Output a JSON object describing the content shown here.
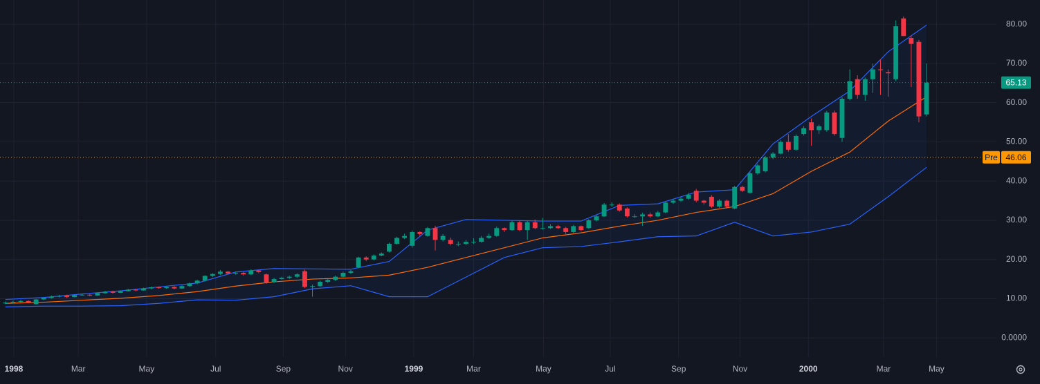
{
  "chart_data": {
    "type": "candlestick",
    "up_color": "#089981",
    "down_color": "#f23645",
    "open": [
      8.8,
      9.0,
      9.2,
      9.4,
      8.6,
      9.8,
      10.2,
      10.5,
      10.8,
      10.4,
      10.9,
      11.0,
      10.8,
      11.4,
      11.8,
      11.5,
      11.9,
      12.3,
      12.1,
      12.6,
      12.9,
      12.7,
      13.0,
      12.6,
      13.2,
      13.9,
      14.6,
      15.8,
      16.3,
      16.9,
      16.4,
      16.6,
      16.2,
      17.2,
      16.2,
      14.2,
      15.0,
      15.3,
      15.6,
      17.0,
      13.0,
      13.2,
      14.3,
      14.8,
      15.6,
      16.6,
      18.0,
      20.5,
      20.0,
      21.0,
      22.0,
      24.0,
      25.5,
      23.5,
      27.0,
      26.0,
      28.0,
      25.0,
      25.0,
      24.0,
      24.0,
      24.5,
      24.5,
      25.5,
      26.0,
      28.0,
      27.5,
      29.5,
      27.5,
      29.5,
      28.0,
      28.0,
      28.5,
      28.0,
      27.0,
      28.5,
      28.0,
      30.0,
      31.0,
      34.0,
      34.0,
      33.0,
      31.0,
      31.0,
      31.5,
      31.0,
      32.0,
      34.5,
      35.0,
      35.5,
      37.5,
      35.0,
      36.0,
      33.5,
      35.0,
      33.0,
      38.5,
      37.0,
      42.0,
      42.5,
      46.0,
      47.0,
      50.0,
      48.0,
      52.0,
      55.0,
      53.0,
      53.0,
      57.5,
      51.0,
      61.0,
      66.0,
      62.0,
      66.0,
      68.5,
      67.8,
      66.0,
      81.5,
      76.5,
      75.5,
      57.0
    ],
    "high": [
      9.3,
      9.5,
      9.7,
      9.6,
      9.9,
      10.4,
      10.8,
      11.0,
      11.0,
      11.1,
      11.3,
      11.2,
      11.6,
      12.0,
      12.0,
      12.1,
      12.5,
      12.5,
      12.8,
      13.1,
      13.1,
      13.2,
      13.2,
      13.4,
      14.1,
      14.8,
      16.0,
      16.5,
      17.3,
      17.1,
      16.9,
      16.8,
      17.5,
      17.4,
      16.4,
      15.3,
      15.6,
      15.9,
      16.5,
      17.4,
      13.6,
      14.6,
      15.1,
      15.9,
      16.9,
      17.3,
      20.7,
      20.8,
      21.3,
      21.8,
      24.3,
      25.8,
      26.6,
      27.4,
      27.2,
      28.3,
      28.6,
      26.5,
      25.6,
      24.6,
      25.0,
      25.4,
      26.0,
      26.6,
      28.4,
      28.2,
      29.9,
      29.8,
      29.8,
      30.2,
      30.6,
      29.0,
      28.8,
      28.3,
      28.8,
      28.7,
      30.3,
      31.4,
      34.4,
      34.6,
      34.3,
      33.3,
      31.6,
      31.9,
      32.0,
      32.4,
      34.8,
      35.4,
      35.9,
      37.0,
      38.0,
      35.2,
      36.4,
      35.4,
      35.3,
      38.8,
      38.8,
      42.4,
      44.4,
      46.4,
      47.4,
      50.4,
      52.0,
      51.9,
      54.0,
      56.0,
      54.4,
      57.9,
      58.0,
      61.4,
      68.5,
      67.0,
      66.4,
      70.0,
      71.0,
      68.5,
      81.0,
      82.0,
      77.0,
      76.0,
      70.0
    ],
    "low": [
      8.6,
      8.8,
      9.0,
      8.8,
      8.5,
      9.6,
      10.0,
      10.3,
      10.2,
      10.3,
      10.7,
      10.6,
      10.7,
      11.2,
      11.3,
      11.4,
      11.8,
      11.9,
      12.0,
      12.4,
      12.5,
      12.5,
      12.4,
      12.5,
      13.0,
      13.7,
      14.4,
      15.5,
      16.0,
      16.2,
      16.1,
      15.9,
      16.0,
      16.5,
      13.8,
      14.0,
      14.8,
      15.0,
      15.3,
      12.7,
      10.5,
      13.0,
      14.0,
      14.5,
      15.4,
      16.3,
      17.8,
      19.6,
      19.8,
      20.8,
      21.8,
      23.8,
      25.2,
      23.0,
      26.0,
      25.8,
      22.3,
      24.6,
      23.6,
      23.4,
      23.7,
      24.0,
      24.3,
      25.3,
      25.8,
      27.0,
      27.3,
      27.2,
      25.0,
      27.7,
      27.6,
      27.8,
      27.7,
      26.5,
      26.8,
      27.2,
      27.8,
      29.7,
      30.8,
      33.5,
      32.2,
      30.7,
      30.6,
      28.6,
      30.6,
      30.8,
      31.8,
      34.2,
      34.7,
      35.2,
      34.6,
      34.0,
      33.2,
      33.2,
      33.0,
      32.8,
      37.2,
      36.8,
      41.6,
      42.2,
      45.6,
      46.8,
      47.5,
      47.8,
      51.6,
      49.0,
      52.0,
      52.6,
      51.6,
      50.0,
      60.6,
      61.0,
      60.5,
      62.5,
      62.0,
      61.5,
      65.5,
      77.0,
      64.0,
      55.0,
      56.5
    ],
    "close": [
      9.0,
      9.2,
      9.4,
      9.1,
      9.8,
      10.2,
      10.5,
      10.7,
      10.4,
      10.9,
      11.0,
      10.8,
      11.4,
      11.8,
      11.5,
      11.9,
      12.3,
      12.1,
      12.6,
      12.9,
      12.7,
      13.0,
      12.6,
      13.2,
      13.9,
      14.6,
      15.8,
      16.3,
      16.9,
      16.4,
      16.6,
      16.2,
      17.2,
      16.8,
      14.2,
      15.0,
      15.3,
      15.6,
      16.2,
      13.0,
      13.2,
      14.3,
      14.8,
      15.6,
      16.6,
      17.0,
      20.5,
      20.0,
      21.0,
      21.5,
      24.0,
      25.5,
      26.0,
      27.0,
      26.5,
      28.0,
      25.0,
      26.0,
      24.0,
      24.0,
      24.5,
      24.5,
      25.5,
      26.0,
      28.0,
      27.5,
      29.5,
      27.5,
      29.5,
      28.0,
      28.0,
      28.5,
      28.0,
      27.0,
      28.5,
      27.5,
      30.0,
      31.0,
      34.0,
      34.0,
      32.5,
      31.0,
      31.0,
      31.5,
      31.0,
      32.0,
      34.5,
      35.0,
      35.5,
      36.5,
      35.0,
      34.5,
      33.5,
      35.0,
      33.5,
      38.5,
      37.5,
      42.0,
      44.0,
      46.0,
      47.0,
      50.0,
      48.0,
      51.5,
      53.5,
      53.0,
      54.0,
      57.5,
      52.0,
      61.0,
      65.5,
      62.0,
      66.0,
      68.5,
      68.3,
      67.5,
      79.5,
      77.0,
      75.0,
      56.5,
      65.13
    ],
    "series": [
      {
        "color": "#2962ff",
        "x": [
          0,
          5,
          10,
          15,
          20,
          25,
          30,
          35,
          40,
          45,
          50,
          55,
          60,
          65,
          70,
          75,
          80,
          85,
          90,
          95,
          100,
          105,
          110,
          115,
          120
        ],
        "values": [
          9.8,
          10.3,
          11.2,
          12.0,
          13.0,
          14.0,
          16.8,
          17.7,
          17.6,
          17.5,
          19.5,
          27.5,
          30.2,
          30.0,
          29.8,
          29.8,
          33.8,
          34.2,
          37.2,
          37.8,
          49.5,
          56.5,
          63.0,
          73.0,
          79.8
        ]
      },
      {
        "color": "#ff6d00",
        "x": [
          0,
          5,
          10,
          15,
          20,
          25,
          30,
          35,
          40,
          45,
          50,
          55,
          60,
          65,
          70,
          75,
          80,
          85,
          90,
          95,
          100,
          105,
          110,
          115,
          120
        ],
        "values": [
          8.8,
          9.1,
          9.6,
          10.1,
          10.8,
          11.8,
          13.2,
          14.3,
          15.0,
          15.3,
          16.0,
          18.0,
          20.5,
          23.0,
          25.5,
          26.8,
          28.5,
          30.0,
          32.0,
          33.5,
          36.8,
          42.5,
          47.4,
          55.3,
          61.5
        ]
      },
      {
        "color": "#2962ff",
        "x": [
          0,
          5,
          10,
          15,
          20,
          25,
          30,
          35,
          40,
          45,
          50,
          55,
          60,
          65,
          70,
          75,
          80,
          85,
          90,
          95,
          100,
          105,
          110,
          115,
          120
        ],
        "values": [
          7.9,
          8.1,
          8.1,
          8.2,
          8.8,
          9.7,
          9.6,
          10.5,
          12.5,
          13.3,
          10.5,
          10.5,
          15.5,
          20.5,
          23.0,
          23.3,
          24.5,
          25.8,
          26.0,
          29.5,
          26.0,
          27.0,
          29.0,
          36.0,
          43.5
        ]
      }
    ],
    "band_fill": "rgba(41,98,255,0.06)",
    "premarket": {
      "label": "Pre",
      "value": 46.06,
      "color": "#ff9800"
    },
    "xlim": [
      -0.7,
      129.1
    ],
    "xticks": [
      {
        "value": 1.1,
        "label": "1998"
      },
      {
        "value": 9.5,
        "label": "Mar"
      },
      {
        "value": 18.4,
        "label": "May"
      },
      {
        "value": 27.4,
        "label": "Jul"
      },
      {
        "value": 36.2,
        "label": "Sep"
      },
      {
        "value": 44.3,
        "label": "Nov"
      },
      {
        "value": 53.2,
        "label": "1999"
      },
      {
        "value": 61.0,
        "label": "Mar"
      },
      {
        "value": 70.1,
        "label": "May"
      },
      {
        "value": 78.8,
        "label": "Jul"
      },
      {
        "value": 87.7,
        "label": "Sep"
      },
      {
        "value": 95.7,
        "label": "Nov"
      },
      {
        "value": 104.6,
        "label": "2000"
      },
      {
        "value": 114.4,
        "label": "Mar"
      },
      {
        "value": 121.3,
        "label": "May"
      }
    ],
    "ylim": [
      -4.9,
      86.2
    ],
    "yticks": [
      {
        "value": 0,
        "label": "0.0000"
      },
      {
        "value": 10,
        "label": "10.00"
      },
      {
        "value": 20,
        "label": "20.00"
      },
      {
        "value": 30,
        "label": "30.00"
      },
      {
        "value": 40,
        "label": "40.00"
      },
      {
        "value": 50,
        "label": "50.00"
      },
      {
        "value": 60,
        "label": "60.00"
      },
      {
        "value": 70,
        "label": "70.00"
      },
      {
        "value": 80,
        "label": "80.00"
      }
    ],
    "grid": true
  }
}
